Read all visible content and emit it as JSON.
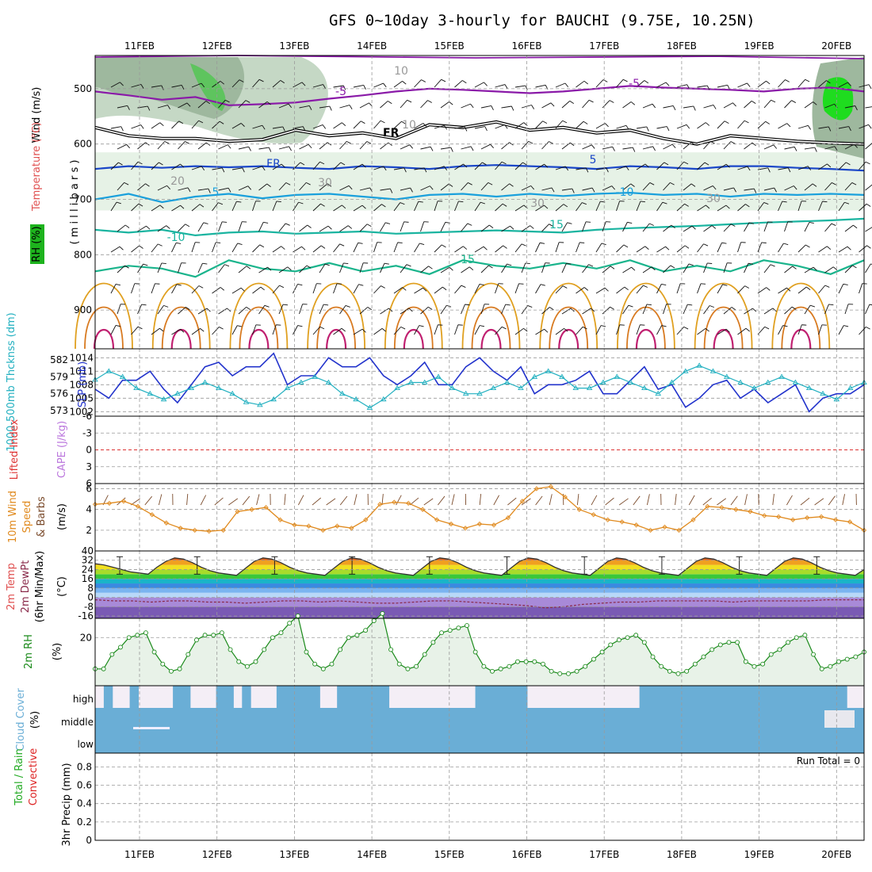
{
  "title": "GFS 0~10day 3-hourly for BAUCHI (9.75E, 10.25N)",
  "colors": {
    "wind": "#000000",
    "temperature": "#e05050",
    "rh": "#1db31d",
    "slp": "#2233cc",
    "thickness": "#22b0c0",
    "lifted_index": "#dd3333",
    "cape": "#bb77dd",
    "wind10": "#e08a1e",
    "rh2m": "#1a8a1a",
    "cloud": "#6aaed6",
    "precip_total": "#22aa22",
    "precip_conv": "#dd2222"
  },
  "chart_data": [
    {
      "panel": "upper-air",
      "type": "heatmap",
      "x_ticks": [
        "11FEB",
        "12FEB",
        "13FEB",
        "14FEB",
        "15FEB",
        "16FEB",
        "17FEB",
        "18FEB",
        "19FEB",
        "20FEB"
      ],
      "ylabel_parts": [
        "Wind (m/s)",
        "Temperature (°C)",
        "RH (%)"
      ],
      "ylabel_units": "( m i l l i b a r s )",
      "y_ticks": [
        "500",
        "600",
        "700",
        "800",
        "900"
      ],
      "ylim": [
        970,
        440
      ],
      "contour_labels": [
        "-5",
        "-5",
        "FR",
        "5",
        "5",
        "-10",
        "-10",
        "15",
        "15",
        "20",
        "30",
        "30",
        "30",
        "10",
        "10"
      ],
      "isotherms": [
        {
          "label": "-5",
          "level": [
            505,
            512,
            520,
            515,
            530,
            528,
            525,
            518,
            512,
            505,
            500,
            502,
            505,
            508,
            505,
            500,
            495,
            498,
            500,
            502,
            505,
            500,
            498,
            505
          ]
        },
        {
          "label": "FR",
          "level": [
            570,
            585,
            590,
            590,
            595,
            592,
            575,
            585,
            580,
            590,
            565,
            570,
            560,
            575,
            570,
            580,
            575,
            590,
            600,
            585,
            590,
            595,
            598,
            600
          ]
        },
        {
          "label": "5",
          "level": [
            645,
            640,
            643,
            640,
            642,
            640,
            643,
            645,
            640,
            642,
            645,
            640,
            638,
            640,
            642,
            645,
            640,
            642,
            645,
            640,
            640,
            643,
            645,
            648
          ]
        },
        {
          "label": "10",
          "level": [
            700,
            690,
            705,
            695,
            690,
            698,
            692,
            690,
            695,
            700,
            692,
            690,
            695,
            690,
            694,
            690,
            688,
            692,
            690,
            695,
            690,
            692,
            690,
            692
          ]
        },
        {
          "label": "15",
          "level": [
            755,
            760,
            755,
            765,
            760,
            758,
            762,
            760,
            758,
            762,
            760,
            758,
            756,
            758,
            760,
            755,
            752,
            750,
            748,
            745,
            742,
            740,
            738,
            735
          ]
        },
        {
          "label": "20",
          "level": [
            830,
            820,
            825,
            840,
            810,
            825,
            830,
            815,
            830,
            820,
            835,
            810,
            820,
            825,
            815,
            825,
            810,
            830,
            820,
            830,
            810,
            820,
            835,
            810
          ]
        }
      ]
    },
    {
      "panel": "slp-thickness",
      "type": "line",
      "ylabel_left": "1000-500mb Thcknss (dm)",
      "ylabel_right": "SLP (mb)",
      "y_ticks_left": [
        "582",
        "579",
        "576",
        "573"
      ],
      "y_ticks_right": [
        "1014",
        "1011",
        "1008",
        "1005",
        "1002"
      ],
      "series": [
        {
          "name": "SLP",
          "values": [
            1007,
            1005,
            1009,
            1009,
            1011,
            1007,
            1004,
            1008,
            1012,
            1013,
            1010,
            1012,
            1012,
            1015,
            1008,
            1010,
            1010,
            1014,
            1012,
            1012,
            1014,
            1010,
            1008,
            1010,
            1013,
            1008,
            1008,
            1012,
            1014,
            1011,
            1009,
            1012,
            1006,
            1008,
            1008,
            1009,
            1011,
            1006,
            1006,
            1009,
            1012,
            1007,
            1008,
            1003,
            1005,
            1008,
            1009,
            1005,
            1007,
            1004,
            1006,
            1008,
            1002,
            1005,
            1006,
            1006,
            1008
          ]
        },
        {
          "name": "Thickness",
          "values": [
            578.5,
            580,
            579,
            577,
            576,
            575,
            576,
            577,
            578,
            577,
            576,
            574.5,
            574,
            575,
            577,
            578,
            579,
            578,
            576,
            575,
            573.5,
            575,
            577,
            578,
            578,
            579,
            577,
            576,
            576,
            577,
            578,
            577,
            579,
            580,
            579,
            577,
            577,
            578,
            579,
            578,
            577,
            576,
            578,
            580,
            581,
            580,
            579,
            578,
            577,
            578,
            579,
            578,
            577,
            576,
            575,
            577,
            578
          ]
        }
      ]
    },
    {
      "panel": "lifted-cape",
      "type": "line",
      "ylabel_left": "Lifted Index",
      "ylabel_right": "CAPE (J/kg)",
      "y_ticks": [
        "-6",
        "-3",
        "0",
        "3",
        "6"
      ],
      "series": [
        {
          "name": "Lifted Index",
          "values": []
        }
      ]
    },
    {
      "panel": "wind10",
      "type": "line",
      "ylabel": "10m Wind Speed & Barbs",
      "yunit": "(m/s)",
      "y_ticks": [
        "6",
        "4",
        "2"
      ],
      "ylim": [
        0,
        6.5
      ],
      "series": [
        {
          "name": "10m Wind Speed",
          "values": [
            4.5,
            4.6,
            4.8,
            4.3,
            3.5,
            2.7,
            2.2,
            2.0,
            1.9,
            2.0,
            3.8,
            4.0,
            4.2,
            3.0,
            2.5,
            2.4,
            2.0,
            2.4,
            2.2,
            3.0,
            4.5,
            4.7,
            4.6,
            4.0,
            3.0,
            2.6,
            2.2,
            2.6,
            2.5,
            3.2,
            4.8,
            6.0,
            6.2,
            5.2,
            4.0,
            3.5,
            3.0,
            2.8,
            2.5,
            2.0,
            2.3,
            2.0,
            3.0,
            4.3,
            4.2,
            4.0,
            3.8,
            3.4,
            3.3,
            3.0,
            3.2,
            3.3,
            3.0,
            2.8,
            2.0
          ]
        }
      ]
    },
    {
      "panel": "temp-dewpt",
      "type": "area",
      "ylabel": "2m Temp 2m DewPt (6hr Min/Max)",
      "yunit": "(°C)",
      "y_ticks": [
        "40",
        "32",
        "24",
        "16",
        "8",
        "0",
        "-8",
        "-16"
      ],
      "ylim": [
        -18,
        40
      ],
      "series": [
        {
          "name": "2m Temp",
          "values": [
            29,
            28,
            26,
            24,
            22,
            21,
            20,
            26,
            31,
            34,
            33,
            30,
            26,
            23,
            21,
            20,
            19,
            25,
            31,
            34,
            33,
            30,
            26,
            23,
            21,
            20,
            19,
            25,
            31,
            34,
            33,
            30,
            26,
            23,
            21,
            20,
            19,
            25,
            31,
            34,
            33,
            30,
            26,
            23,
            21,
            20,
            19,
            25,
            31,
            34,
            33,
            30,
            26,
            23,
            21,
            20,
            19,
            25,
            31,
            34,
            33,
            30,
            26,
            23,
            21,
            20,
            19,
            25,
            31,
            34,
            33,
            30,
            26,
            23,
            21,
            20,
            19,
            25,
            31,
            34,
            33,
            30,
            26,
            23,
            21,
            20,
            19,
            24
          ]
        },
        {
          "name": "2m DewPt",
          "values": [
            -2,
            -3,
            -3,
            -4,
            -3,
            -3,
            -4,
            -4,
            -5,
            -4,
            -3,
            -3,
            -4,
            -3,
            -4,
            -5,
            -5,
            -4,
            -3,
            -3,
            -4,
            -5,
            -6,
            -7,
            -9,
            -8,
            -6,
            -5,
            -4,
            -4,
            -3,
            -3,
            -3,
            -3,
            -4,
            -3,
            -3,
            -3,
            -3,
            -2,
            -2,
            -2
          ]
        }
      ]
    },
    {
      "panel": "rh2m",
      "type": "area",
      "ylabel": "2m RH",
      "yunit": "(%)",
      "y_ticks": [
        "20"
      ],
      "ylim": [
        0,
        28
      ],
      "series": [
        {
          "name": "2m RH",
          "values": [
            7,
            7,
            13,
            16,
            20,
            21,
            22,
            14,
            9,
            6,
            7,
            13,
            19,
            21,
            21,
            22,
            15,
            10,
            8,
            10,
            15,
            20,
            22,
            26,
            29,
            14,
            9,
            7,
            9,
            15,
            20,
            21,
            23,
            27,
            30,
            15,
            9,
            7,
            8,
            13,
            18,
            22,
            23,
            24,
            25,
            14,
            8,
            6,
            7,
            8,
            10,
            10,
            10,
            9,
            6,
            5,
            5,
            6,
            8,
            11,
            14,
            17,
            19,
            20,
            21,
            18,
            12,
            8,
            6,
            5,
            6,
            9,
            12,
            15,
            17,
            18,
            18,
            10,
            8,
            9,
            13,
            15,
            18,
            20,
            21,
            13,
            7,
            8,
            10,
            11,
            12,
            14
          ]
        }
      ]
    },
    {
      "panel": "cloud-cover",
      "type": "area",
      "ylabel": "Cloud Cover",
      "yunit": "(%)",
      "y_ticks": [
        "high",
        "middle",
        "low"
      ]
    },
    {
      "panel": "precip",
      "type": "bar",
      "ylabel_parts": [
        "Total / Rain",
        "Convective"
      ],
      "ylabel": "3hr Precip (mm)",
      "y_ticks": [
        "0.8",
        "0.6",
        "0.4",
        "0.2",
        "0"
      ],
      "ylim": [
        0,
        0.95
      ],
      "run_total": "Run Total = 0",
      "values": []
    }
  ]
}
